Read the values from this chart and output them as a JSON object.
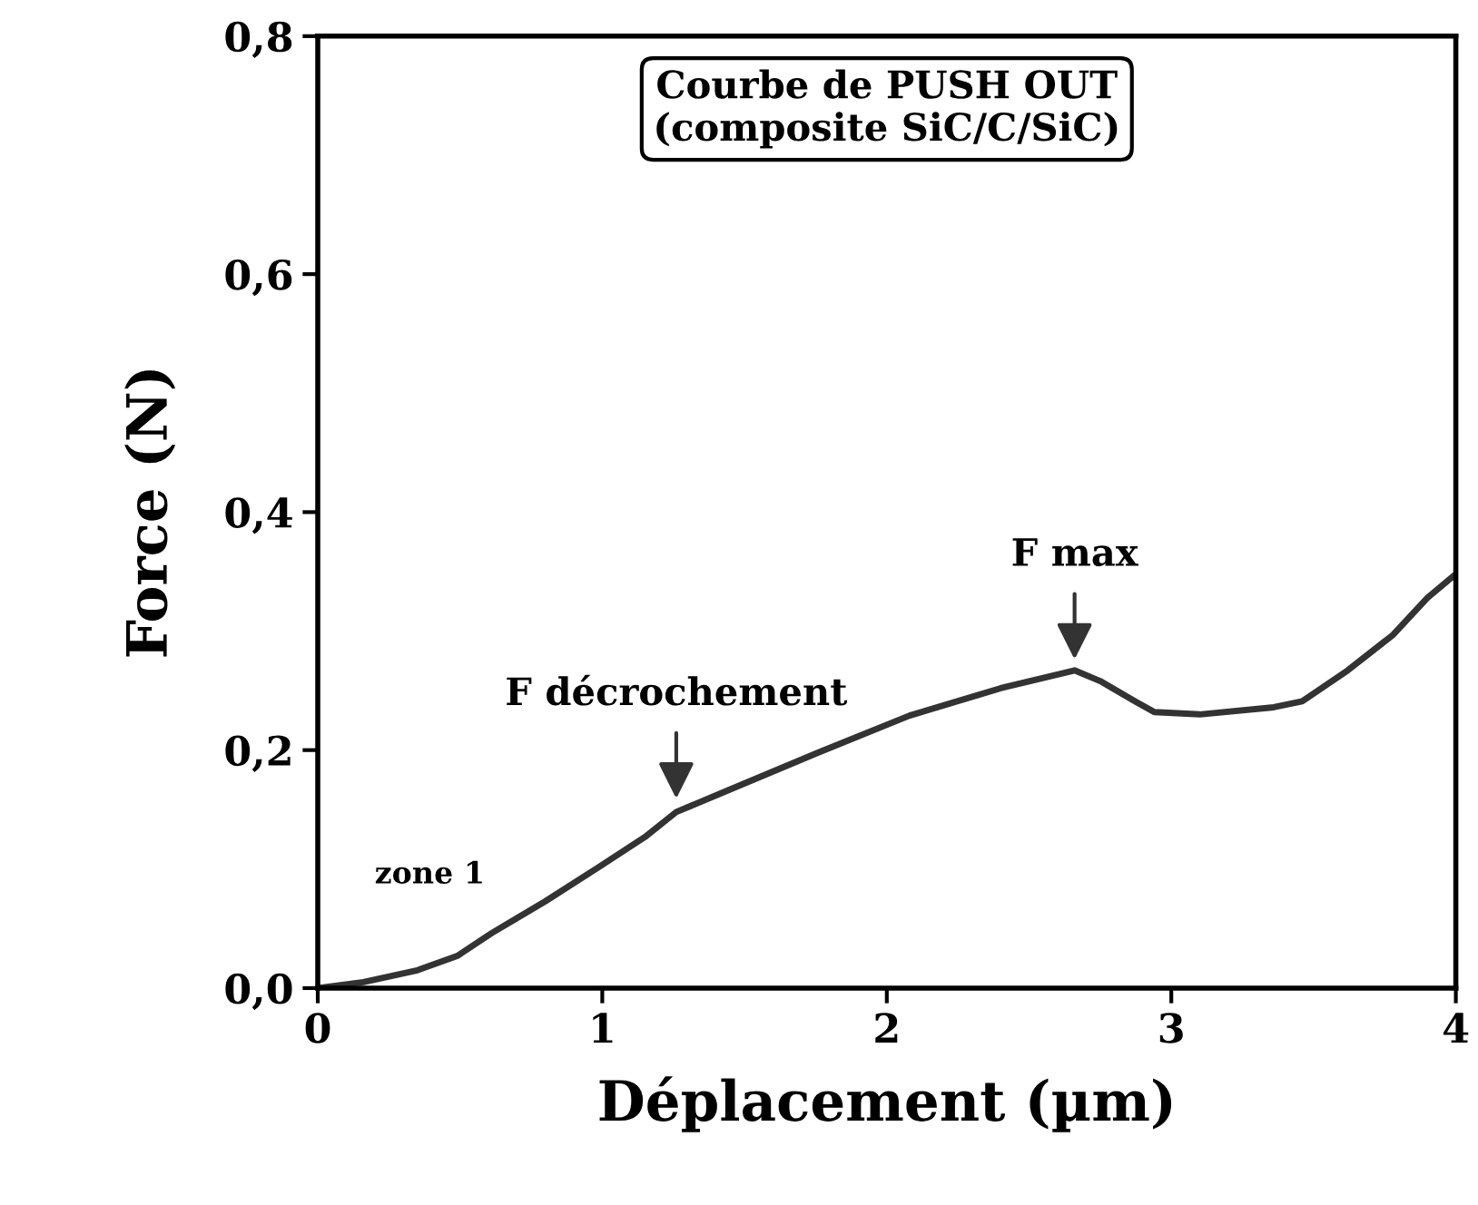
{
  "chart_data": {
    "type": "line",
    "title": "Courbe de PUSH OUT\n(composite SiC/C/SiC)",
    "xlabel": "Déplacement (µm)",
    "ylabel": "Force (N)",
    "x": [
      0,
      0.16,
      0.35,
      0.49,
      0.61,
      0.8,
      0.99,
      1.15,
      1.26,
      1.44,
      1.76,
      2.08,
      2.4,
      2.66,
      2.75,
      2.88,
      2.94,
      3.1,
      3.36,
      3.46,
      3.62,
      3.78,
      3.9,
      4.0
    ],
    "series": [
      {
        "color": "#333333",
        "values": [
          0,
          0.005,
          0.015,
          0.027,
          0.046,
          0.073,
          0.102,
          0.127,
          0.148,
          0.166,
          0.198,
          0.229,
          0.252,
          0.267,
          0.258,
          0.24,
          0.232,
          0.23,
          0.236,
          0.241,
          0.267,
          0.297,
          0.328,
          0.348
        ]
      }
    ],
    "xlim": [
      0,
      4
    ],
    "ylim": [
      0,
      0.8
    ],
    "xticks": [
      0,
      1,
      2,
      3,
      4
    ],
    "yticks": [
      {
        "value": 0,
        "label": "0,0"
      },
      {
        "value": 0.2,
        "label": "0,2"
      },
      {
        "value": 0.4,
        "label": "0,4"
      },
      {
        "value": 0.6,
        "label": "0,6"
      },
      {
        "value": 0.8,
        "label": "0,8"
      }
    ],
    "annotations": [
      {
        "text": "F décrochement",
        "x": 1.26,
        "y": 0.155
      },
      {
        "text": "F max",
        "x": 2.66,
        "y": 0.272
      },
      "zone 1"
    ],
    "grid": false,
    "legend": false,
    "marker": "none",
    "line_style": "solid"
  }
}
